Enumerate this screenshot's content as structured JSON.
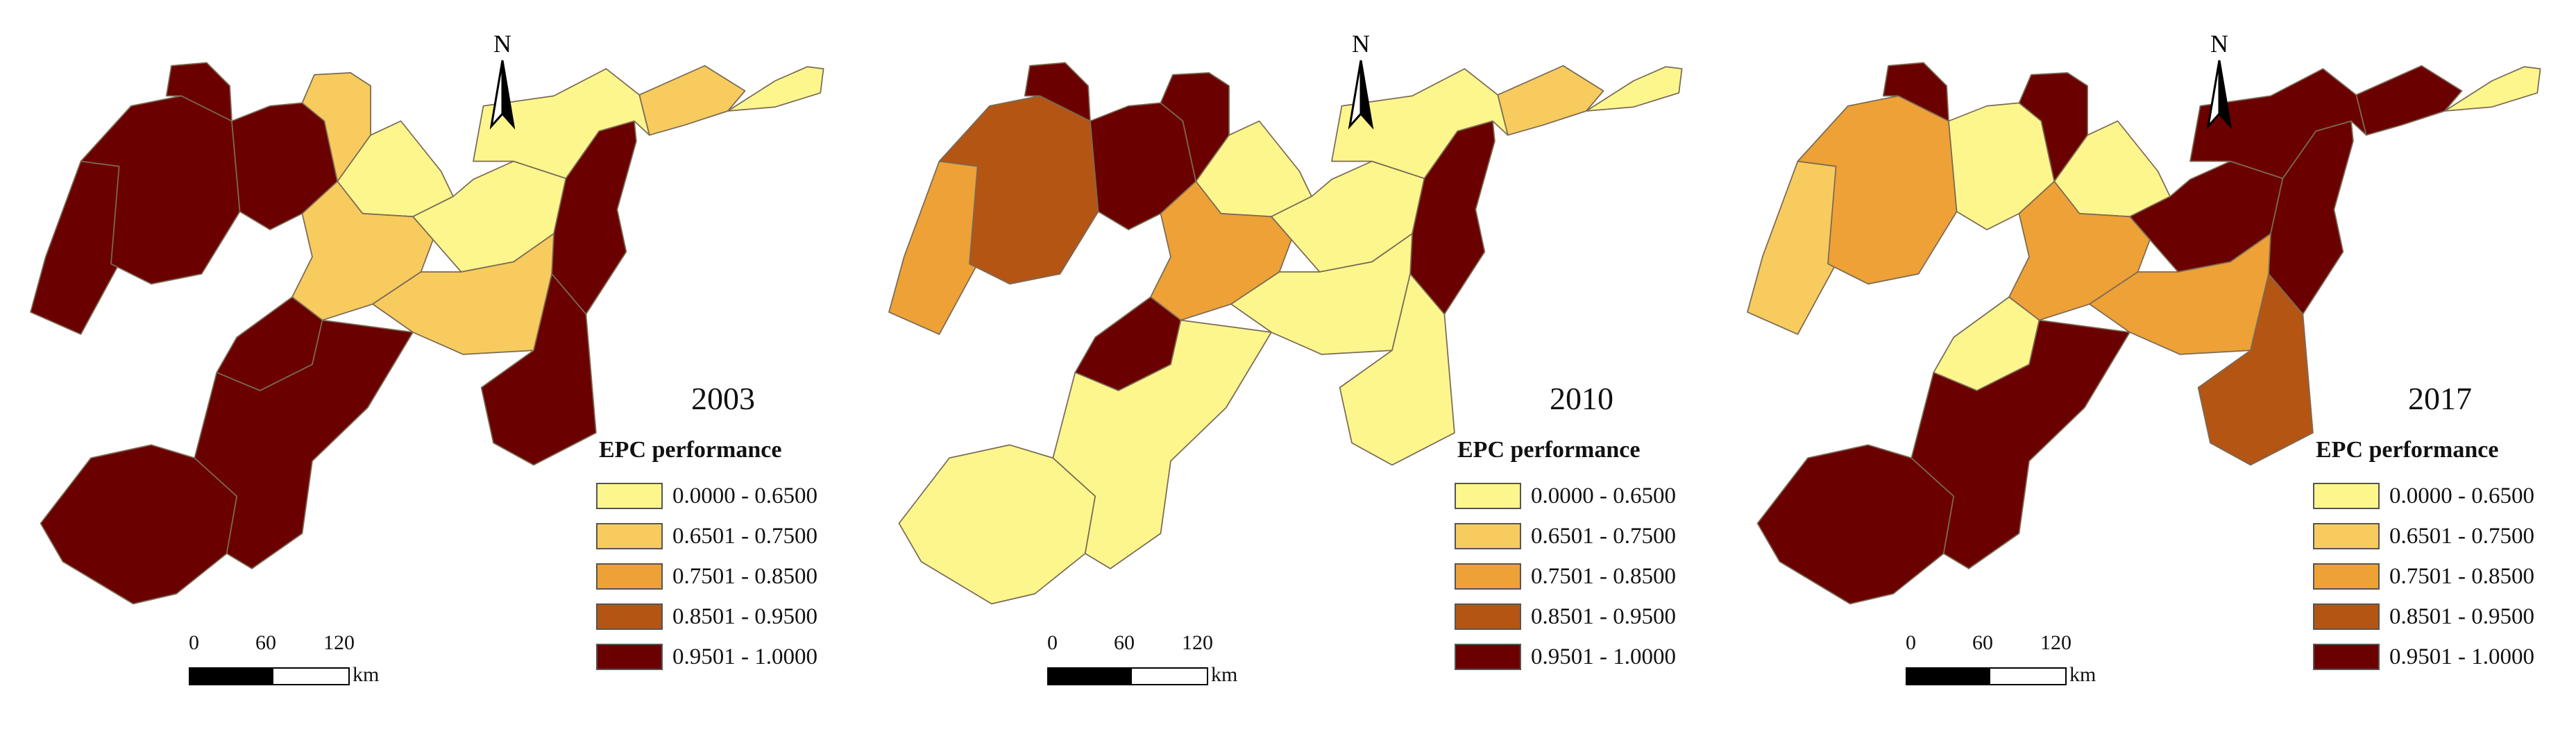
{
  "legend": {
    "title": "EPC performance",
    "classes": [
      {
        "label": "0.0000 - 0.6500",
        "color": "#fdf68d"
      },
      {
        "label": "0.6501 - 0.7500",
        "color": "#f7cb5e"
      },
      {
        "label": "0.7501 - 0.8500",
        "color": "#eea136"
      },
      {
        "label": "0.8501 - 0.9500",
        "color": "#b45514"
      },
      {
        "label": "0.9501 - 1.0000",
        "color": "#6b0000"
      }
    ]
  },
  "north_label": "N",
  "scale_bar": {
    "ticks": [
      "0",
      "60",
      "120"
    ],
    "unit": "km"
  },
  "maps": [
    {
      "year": "2003",
      "region_classes": [
        4,
        4,
        4,
        4,
        1,
        0,
        0,
        4,
        1,
        0,
        1,
        4,
        1,
        0,
        4,
        4,
        4
      ]
    },
    {
      "year": "2010",
      "region_classes": [
        2,
        3,
        4,
        4,
        4,
        0,
        0,
        4,
        1,
        0,
        2,
        4,
        0,
        0,
        0,
        0,
        0
      ]
    },
    {
      "year": "2017",
      "region_classes": [
        1,
        2,
        0,
        4,
        4,
        0,
        4,
        4,
        4,
        0,
        2,
        0,
        2,
        4,
        3,
        4,
        4
      ]
    }
  ]
}
